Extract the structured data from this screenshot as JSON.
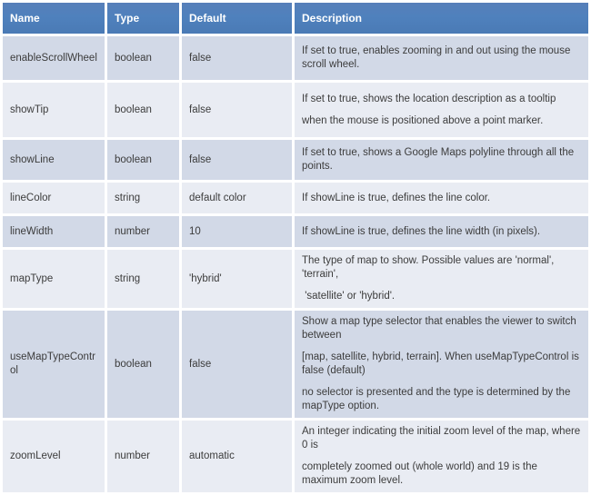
{
  "colors": {
    "header_bg": "#4F81BD",
    "header_text": "#FFFFFF",
    "row_odd_bg": "#D2D9E7",
    "row_even_bg": "#E9ECF3",
    "body_text": "#3C3C3C",
    "grid": "#FFFFFF"
  },
  "table": {
    "columns": [
      {
        "key": "name",
        "label": "Name"
      },
      {
        "key": "type",
        "label": "Type"
      },
      {
        "key": "default",
        "label": "Default"
      },
      {
        "key": "description",
        "label": "Description"
      }
    ],
    "rows": [
      {
        "name": "enableScrollWheel",
        "type": "boolean",
        "default": "false",
        "description": [
          "If set to true, enables zooming in and out using the mouse scroll wheel."
        ]
      },
      {
        "name": "showTip",
        "type": "boolean",
        "default": "false",
        "description": [
          "If set to true, shows the location description as a tooltip",
          "when the mouse is positioned above a point marker."
        ]
      },
      {
        "name": "showLine",
        "type": "boolean",
        "default": "false",
        "description": [
          "If set to true, shows a Google Maps polyline through all the points."
        ]
      },
      {
        "name": "lineColor",
        "type": "string",
        "default": "default color",
        "description": [
          "If showLine is true, defines the line color."
        ]
      },
      {
        "name": "lineWidth",
        "type": "number",
        "default": "10",
        "description": [
          "If showLine is true, defines the line width (in pixels)."
        ]
      },
      {
        "name": "mapType",
        "type": "string",
        "default": "'hybrid'",
        "description": [
          "The type of map to show. Possible values are 'normal', 'terrain',",
          " 'satellite' or 'hybrid'."
        ]
      },
      {
        "name": "useMapTypeControl",
        "type": "boolean",
        "default": "false",
        "description": [
          "Show a map type selector that enables the viewer to switch between",
          "[map, satellite, hybrid, terrain]. When useMapTypeControl is false (default)",
          "no selector is presented and the type is determined by the mapType option."
        ]
      },
      {
        "name": "zoomLevel",
        "type": "number",
        "default": "automatic",
        "description": [
          "An integer indicating the initial zoom level of the map, where 0 is",
          "completely zoomed out (whole world) and 19 is the maximum zoom level."
        ]
      }
    ]
  }
}
